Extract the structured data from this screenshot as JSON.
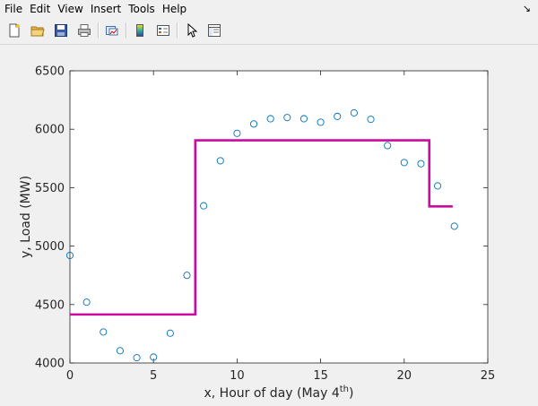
{
  "menubar": {
    "items": [
      "File",
      "Edit",
      "View",
      "Insert",
      "Tools",
      "Help"
    ]
  },
  "toolbar": {
    "buttons": [
      "new-figure",
      "open-file",
      "save-figure",
      "print-figure",
      "link-plot",
      "insert-colorbar",
      "insert-legend",
      "edit-plot",
      "open-property-inspector"
    ]
  },
  "colors": {
    "marker": "#0072bd",
    "step": "#cc0a9f",
    "axes_bg": "#ffffff"
  },
  "chart_data": {
    "type": "scatter",
    "title": "",
    "xlabel": "x,   Hour  of  day  (May  4",
    "xlabel_sup": "th",
    "xlabel_end": ")",
    "ylabel": "y,  Load (MW)",
    "xlim": [
      0,
      25
    ],
    "ylim": [
      4000,
      6500
    ],
    "xticks": [
      0,
      5,
      10,
      15,
      20,
      25
    ],
    "yticks": [
      4000,
      4500,
      5000,
      5500,
      6000,
      6500
    ],
    "grid": false,
    "series": [
      {
        "kind": "markers",
        "x": [
          0,
          1,
          2,
          3,
          4,
          5,
          6,
          7,
          8,
          9,
          10,
          11,
          12,
          13,
          14,
          15,
          16,
          17,
          18,
          19,
          20,
          21,
          22,
          23
        ],
        "y": [
          4920,
          4520,
          4265,
          4105,
          4045,
          4050,
          4255,
          4750,
          5345,
          5730,
          5965,
          6045,
          6090,
          6100,
          6090,
          6060,
          6110,
          6140,
          6085,
          5860,
          5715,
          5705,
          5515,
          5170
        ]
      },
      {
        "kind": "step",
        "x": [
          0,
          7.5,
          7.5,
          21.5,
          21.5,
          22.9
        ],
        "y": [
          4415,
          4415,
          5905,
          5905,
          5340,
          5340
        ]
      }
    ]
  }
}
